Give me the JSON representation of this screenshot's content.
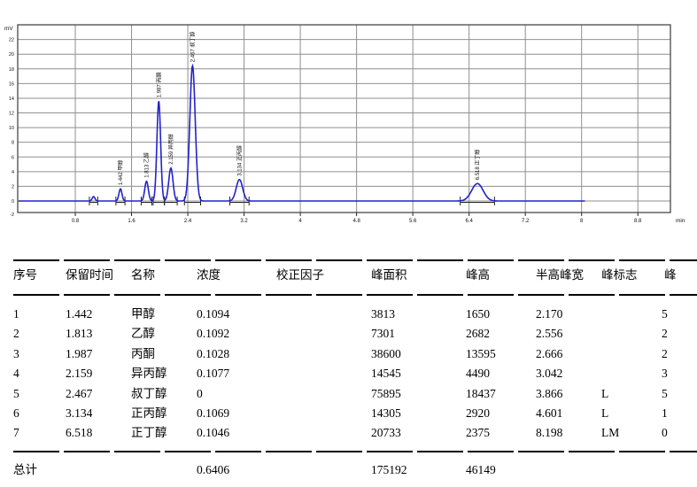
{
  "chart": {
    "y_unit": "mV",
    "x_unit": "min",
    "x_ticks": [
      "0.8",
      "1.6",
      "2.4",
      "3.2",
      "4",
      "4.8",
      "5.6",
      "6.4",
      "7.2",
      "8",
      "8.8"
    ],
    "y_ticks": [
      "22",
      "20",
      "18",
      "16",
      "14",
      "12",
      "10",
      "8",
      "6",
      "4",
      "2",
      "0",
      "-2"
    ],
    "trace_color": "#2222cc",
    "grid_color": "#8f8f8f",
    "frame_color": "#3a3a3a"
  },
  "chart_data": {
    "type": "line",
    "title": "",
    "xlabel": "min",
    "ylabel": "mV",
    "x_range_min": [
      0,
      9.35
    ],
    "y_range_mv": [
      -2,
      24
    ],
    "trace_end_min": 8.05,
    "grid": true,
    "peaks": [
      {
        "rt": 1.06,
        "name": "",
        "height_uv": 600,
        "fwhm_s": 2.0
      },
      {
        "rt": 1.442,
        "name": "甲醇",
        "height_uv": 1650,
        "fwhm_s": 2.17
      },
      {
        "rt": 1.813,
        "name": "乙醇",
        "height_uv": 2682,
        "fwhm_s": 2.556
      },
      {
        "rt": 1.987,
        "name": "丙酮",
        "height_uv": 13595,
        "fwhm_s": 2.666
      },
      {
        "rt": 2.159,
        "name": "异丙醇",
        "height_uv": 4490,
        "fwhm_s": 3.042
      },
      {
        "rt": 2.467,
        "name": "叔丁醇",
        "height_uv": 18437,
        "fwhm_s": 3.866
      },
      {
        "rt": 3.134,
        "name": "正丙醇",
        "height_uv": 2920,
        "fwhm_s": 4.601
      },
      {
        "rt": 6.518,
        "name": "正丁醇",
        "height_uv": 2375,
        "fwhm_s": 8.198
      }
    ]
  },
  "table": {
    "headers": [
      "序号",
      "保留时间",
      "名称",
      "浓度",
      "校正因子",
      "峰面积",
      "峰高",
      "半高峰宽",
      "峰标志",
      "峰"
    ],
    "rows": [
      [
        "1",
        "1.442",
        "甲醇",
        "0.1094",
        "",
        "3813",
        "1650",
        "2.170",
        "",
        "5"
      ],
      [
        "2",
        "1.813",
        "乙醇",
        "0.1092",
        "",
        "7301",
        "2682",
        "2.556",
        "",
        "2"
      ],
      [
        "3",
        "1.987",
        "丙酮",
        "0.1028",
        "",
        "38600",
        "13595",
        "2.666",
        "",
        "2"
      ],
      [
        "4",
        "2.159",
        "异丙醇",
        "0.1077",
        "",
        "14545",
        "4490",
        "3.042",
        "",
        "3"
      ],
      [
        "5",
        "2.467",
        "叔丁醇",
        "0",
        "",
        "75895",
        "18437",
        "3.866",
        "L",
        "5"
      ],
      [
        "6",
        "3.134",
        "正丙醇",
        "0.1069",
        "",
        "14305",
        "2920",
        "4.601",
        "L",
        "1"
      ],
      [
        "7",
        "6.518",
        "正丁醇",
        "0.1046",
        "",
        "20733",
        "2375",
        "8.198",
        "LM",
        "0"
      ]
    ],
    "totals": [
      "总计",
      "",
      "",
      "0.6406",
      "",
      "175192",
      "46149",
      "",
      "",
      ""
    ]
  }
}
